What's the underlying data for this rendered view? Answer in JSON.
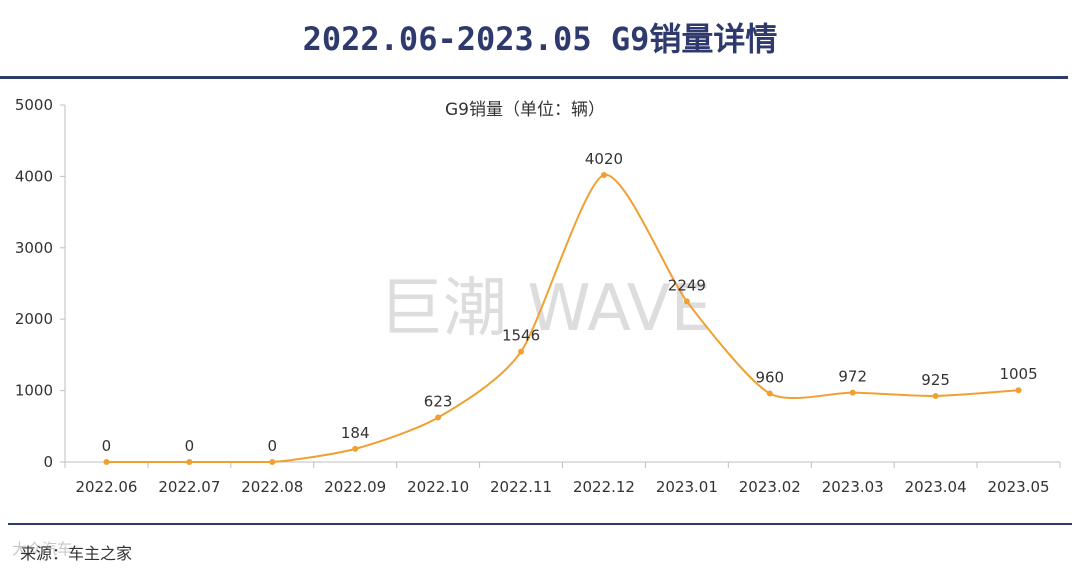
{
  "header": {
    "title": "2022.06-2023.05 G9销量详情"
  },
  "footer": {
    "source": "来源：车主之家",
    "watermark": "大众汽车"
  },
  "chart_data": {
    "type": "line",
    "title": "G9销量（单位：辆）",
    "watermark": "巨潮 WAVE",
    "categories": [
      "2022.06",
      "2022.07",
      "2022.08",
      "2022.09",
      "2022.10",
      "2022.11",
      "2022.12",
      "2023.01",
      "2023.02",
      "2023.03",
      "2023.04",
      "2023.05"
    ],
    "series": [
      {
        "values": [
          0,
          0,
          0,
          184,
          623,
          1546,
          4020,
          2249,
          960,
          972,
          925,
          1005
        ]
      }
    ],
    "ylim": [
      0,
      5000
    ],
    "yticks": [
      0,
      1000,
      2000,
      3000,
      4000,
      5000
    ],
    "xlabel": "",
    "ylabel": "",
    "grid": false,
    "colors": {
      "line": "#f0a030",
      "axis": "#bfbfbf",
      "title_bar": "#2e3a6e"
    }
  }
}
